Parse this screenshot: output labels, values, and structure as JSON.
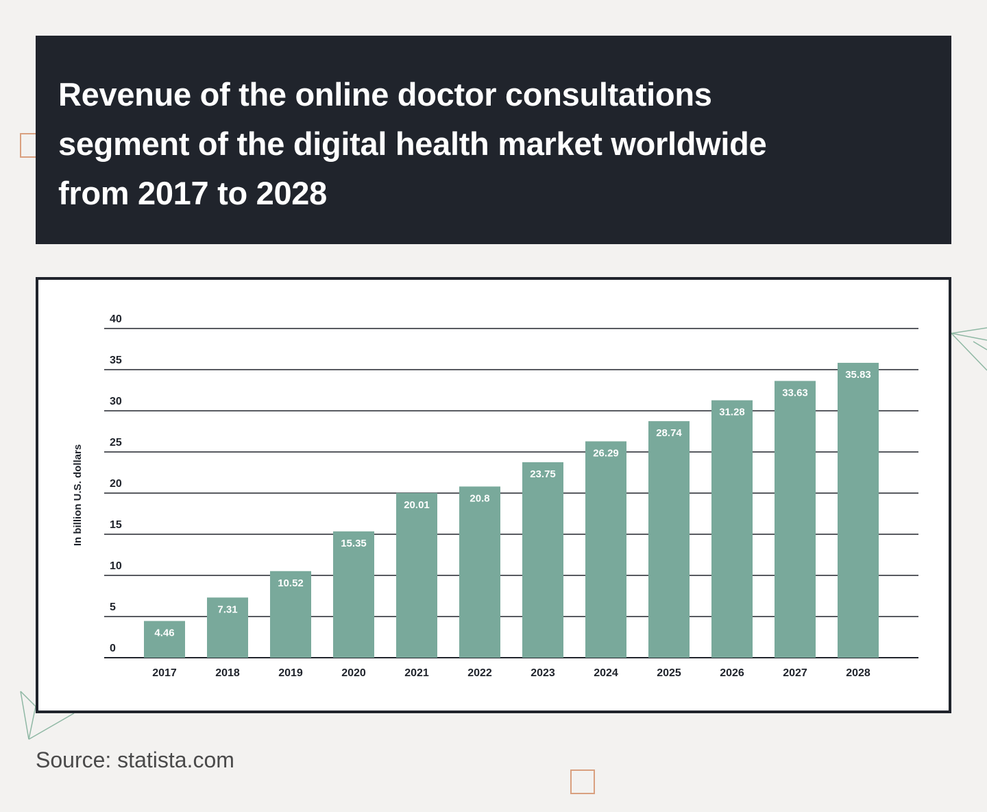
{
  "source": "Source: statista.com",
  "colors": {
    "background": "#f3f2f0",
    "title_box": "#20242c",
    "bar": "#79a99b",
    "accent_square": "#d9a07f",
    "decoration_lines": "#8fb8a4"
  },
  "chart_data": {
    "type": "bar",
    "title": "Revenue of the online doctor consultations\nsegment of the digital health market worldwide\nfrom 2017 to 2028",
    "xlabel": "",
    "ylabel": "In billion U.S. dollars",
    "categories": [
      "2017",
      "2018",
      "2019",
      "2020",
      "2021",
      "2022",
      "2023",
      "2024",
      "2025",
      "2026",
      "2027",
      "2028"
    ],
    "values": [
      4.46,
      7.31,
      10.52,
      15.35,
      20.01,
      20.8,
      23.75,
      26.29,
      28.74,
      31.28,
      33.63,
      35.83
    ],
    "value_labels": [
      "4.46",
      "7.31",
      "10.52",
      "15.35",
      "20.01",
      "20.8",
      "23.75",
      "26.29",
      "28.74",
      "31.28",
      "33.63",
      "35.83"
    ],
    "ylim": [
      0,
      40
    ],
    "yticks": [
      "0",
      "5",
      "10",
      "15",
      "20",
      "25",
      "30",
      "35",
      "40"
    ],
    "grid": true
  }
}
